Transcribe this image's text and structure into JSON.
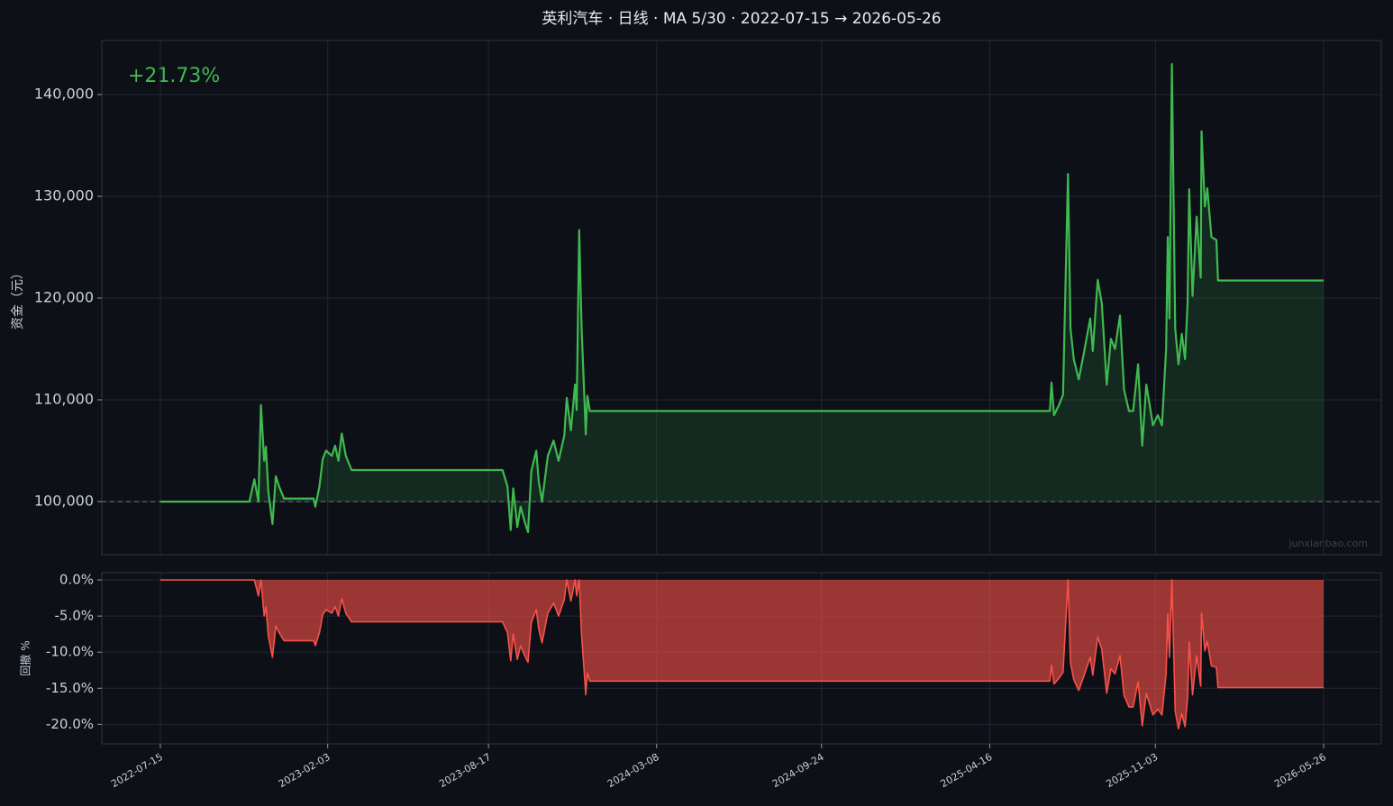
{
  "chart_data": [
    {
      "type": "line",
      "title": "英利汽车 · 日线 · MA 5/30 · 2022-07-15 → 2026-05-26",
      "annotation": "+21.73%",
      "ylabel": "资金（元）",
      "watermark": "junxianbao.com",
      "color": "#3fb950",
      "baseline": 100000,
      "grid": true,
      "xlim": [
        "2022-05-05",
        "2026-08-04"
      ],
      "ylim": [
        94780,
        145310
      ],
      "yticks": [
        {
          "value": 100000,
          "label": "100,000"
        },
        {
          "value": 110000,
          "label": "110,000"
        },
        {
          "value": 120000,
          "label": "120,000"
        },
        {
          "value": 130000,
          "label": "130,000"
        },
        {
          "value": 140000,
          "label": "140,000"
        }
      ],
      "x": [
        "2022-07-15",
        "2022-10-31",
        "2022-11-06",
        "2022-11-11",
        "2022-11-14",
        "2022-11-18",
        "2022-11-20",
        "2022-11-23",
        "2022-11-28",
        "2022-12-02",
        "2022-12-06",
        "2022-12-12",
        "2023-01-17",
        "2023-01-19",
        "2023-01-24",
        "2023-01-28",
        "2023-02-01",
        "2023-02-08",
        "2023-02-12",
        "2023-02-16",
        "2023-02-20",
        "2023-02-25",
        "2023-03-04",
        "2023-09-03",
        "2023-09-09",
        "2023-09-13",
        "2023-09-16",
        "2023-09-21",
        "2023-09-25",
        "2023-09-30",
        "2023-10-04",
        "2023-10-08",
        "2023-10-14",
        "2023-10-17",
        "2023-10-21",
        "2023-10-28",
        "2023-11-04",
        "2023-11-10",
        "2023-11-17",
        "2023-11-20",
        "2023-11-25",
        "2023-11-30",
        "2023-12-02",
        "2023-12-05",
        "2023-12-08",
        "2023-12-11",
        "2023-12-13",
        "2023-12-15",
        "2023-12-18",
        "2025-06-28",
        "2025-06-30",
        "2025-07-03",
        "2025-07-09",
        "2025-07-14",
        "2025-07-20",
        "2025-07-23",
        "2025-07-27",
        "2025-08-02",
        "2025-08-08",
        "2025-08-16",
        "2025-08-19",
        "2025-08-25",
        "2025-08-30",
        "2025-09-05",
        "2025-09-10",
        "2025-09-15",
        "2025-09-21",
        "2025-09-26",
        "2025-10-02",
        "2025-10-07",
        "2025-10-13",
        "2025-10-18",
        "2025-10-23",
        "2025-10-27",
        "2025-10-31",
        "2025-11-06",
        "2025-11-11",
        "2025-11-16",
        "2025-11-18",
        "2025-11-20",
        "2025-11-23",
        "2025-11-27",
        "2025-12-01",
        "2025-12-05",
        "2025-12-09",
        "2025-12-12",
        "2025-12-14",
        "2025-12-18",
        "2025-12-23",
        "2025-12-28",
        "2025-12-29",
        "2026-01-02",
        "2026-01-05",
        "2026-01-10",
        "2026-01-16",
        "2026-01-18",
        "2026-05-26"
      ],
      "values": [
        100000,
        100000,
        102200,
        100000,
        109500,
        104000,
        105400,
        101000,
        97800,
        102500,
        101500,
        100300,
        100300,
        99500,
        101500,
        104200,
        105000,
        104500,
        105500,
        104000,
        106700,
        104500,
        103100,
        103100,
        101500,
        97200,
        101300,
        97500,
        99500,
        98000,
        97000,
        103000,
        105000,
        102000,
        100000,
        104500,
        106000,
        104000,
        106500,
        110200,
        107000,
        111500,
        109000,
        126700,
        117000,
        111000,
        106600,
        110400,
        108900,
        108900,
        111700,
        108500,
        109500,
        110500,
        132200,
        117000,
        114000,
        112000,
        114500,
        118000,
        114800,
        121800,
        119500,
        111500,
        116000,
        115000,
        118300,
        111000,
        108900,
        108900,
        113500,
        105500,
        111500,
        109500,
        107500,
        108500,
        107500,
        115000,
        126000,
        118000,
        143000,
        117000,
        113500,
        116500,
        114000,
        119500,
        130700,
        120200,
        128000,
        122000,
        136400,
        129000,
        130800,
        126000,
        125700,
        121730,
        121730
      ]
    },
    {
      "type": "area",
      "ylabel": "回撤 %",
      "color": "#f85149",
      "grid": true,
      "xlim": [
        "2022-05-05",
        "2026-08-04"
      ],
      "xticks": [
        "2022-07-15",
        "2023-02-03",
        "2023-08-17",
        "2024-03-08",
        "2024-09-24",
        "2025-04-16",
        "2025-11-03",
        "2026-05-26"
      ],
      "ylim": [
        -22.7,
        1.0
      ],
      "yticks": [
        {
          "value": 0,
          "label": "0.0%"
        },
        {
          "value": -5,
          "label": "-5.0%"
        },
        {
          "value": -10,
          "label": "-10.0%"
        },
        {
          "value": -15,
          "label": "-15.0%"
        },
        {
          "value": -20,
          "label": "-20.0%"
        }
      ],
      "x": [
        "2022-07-15",
        "2022-10-31",
        "2022-11-06",
        "2022-11-11",
        "2022-11-14",
        "2022-11-18",
        "2022-11-20",
        "2022-11-23",
        "2022-11-28",
        "2022-12-02",
        "2022-12-06",
        "2022-12-12",
        "2023-01-17",
        "2023-01-19",
        "2023-01-24",
        "2023-01-28",
        "2023-02-01",
        "2023-02-08",
        "2023-02-12",
        "2023-02-16",
        "2023-02-20",
        "2023-02-25",
        "2023-03-04",
        "2023-09-03",
        "2023-09-09",
        "2023-09-13",
        "2023-09-16",
        "2023-09-21",
        "2023-09-25",
        "2023-09-30",
        "2023-10-04",
        "2023-10-08",
        "2023-10-14",
        "2023-10-17",
        "2023-10-21",
        "2023-10-28",
        "2023-11-04",
        "2023-11-10",
        "2023-11-17",
        "2023-11-20",
        "2023-11-25",
        "2023-11-30",
        "2023-12-02",
        "2023-12-05",
        "2023-12-08",
        "2023-12-11",
        "2023-12-13",
        "2023-12-15",
        "2023-12-18",
        "2025-06-28",
        "2025-06-30",
        "2025-07-03",
        "2025-07-09",
        "2025-07-14",
        "2025-07-20",
        "2025-07-23",
        "2025-07-27",
        "2025-08-02",
        "2025-08-08",
        "2025-08-16",
        "2025-08-19",
        "2025-08-25",
        "2025-08-30",
        "2025-09-05",
        "2025-09-10",
        "2025-09-15",
        "2025-09-21",
        "2025-09-26",
        "2025-10-02",
        "2025-10-07",
        "2025-10-13",
        "2025-10-18",
        "2025-10-23",
        "2025-10-27",
        "2025-10-31",
        "2025-11-06",
        "2025-11-11",
        "2025-11-16",
        "2025-11-18",
        "2025-11-20",
        "2025-11-23",
        "2025-11-27",
        "2025-12-01",
        "2025-12-05",
        "2025-12-09",
        "2025-12-12",
        "2025-12-14",
        "2025-12-18",
        "2025-12-23",
        "2025-12-28",
        "2025-12-29",
        "2026-01-02",
        "2026-01-05",
        "2026-01-10",
        "2026-01-16",
        "2026-01-18",
        "2026-05-26"
      ],
      "values": [
        0,
        0,
        0,
        -2.2,
        0,
        -5.0,
        -3.7,
        -7.8,
        -10.7,
        -6.4,
        -7.3,
        -8.4,
        -8.4,
        -9.1,
        -7.3,
        -4.8,
        -4.1,
        -4.6,
        -3.7,
        -5.0,
        -2.6,
        -4.6,
        -5.8,
        -5.8,
        -7.3,
        -11.2,
        -7.5,
        -11.0,
        -9.1,
        -10.5,
        -11.4,
        -5.9,
        -4.1,
        -6.8,
        -8.7,
        -4.6,
        -3.2,
        -5.0,
        -2.7,
        0,
        -2.9,
        0,
        -2.2,
        0,
        -7.7,
        -12.4,
        -15.9,
        -12.9,
        -14.0,
        -14.0,
        -11.8,
        -14.4,
        -13.6,
        -12.8,
        0,
        -11.5,
        -13.8,
        -15.3,
        -13.4,
        -10.7,
        -13.2,
        -7.9,
        -9.6,
        -15.7,
        -12.3,
        -13.0,
        -10.5,
        -16.0,
        -17.6,
        -17.6,
        -14.1,
        -20.2,
        -15.7,
        -17.2,
        -18.7,
        -17.9,
        -18.7,
        -13.0,
        -4.7,
        -10.7,
        0,
        -18.2,
        -20.6,
        -18.5,
        -20.3,
        -16.4,
        -8.6,
        -15.9,
        -10.5,
        -14.7,
        -4.6,
        -9.8,
        -8.5,
        -11.9,
        -12.1,
        -14.9,
        -14.9
      ]
    }
  ]
}
